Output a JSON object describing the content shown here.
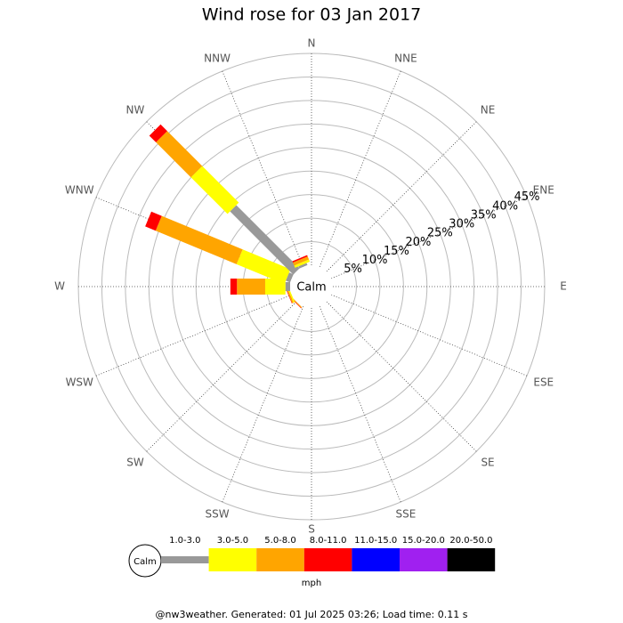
{
  "chart_data": {
    "type": "windrose",
    "title": "Wind rose for 03 Jan 2017",
    "calm_label": "Calm",
    "categories": [
      "N",
      "NNE",
      "NE",
      "ENE",
      "E",
      "ESE",
      "SE",
      "SSE",
      "S",
      "SSW",
      "SW",
      "WSW",
      "W",
      "WNW",
      "NW",
      "NNW"
    ],
    "rlim": [
      0,
      45
    ],
    "rticks": [
      {
        "value": 5,
        "label": "5%"
      },
      {
        "value": 10,
        "label": "10%"
      },
      {
        "value": 15,
        "label": "15%"
      },
      {
        "value": 20,
        "label": "20%"
      },
      {
        "value": 25,
        "label": "25%"
      },
      {
        "value": 30,
        "label": "30%"
      },
      {
        "value": 35,
        "label": "35%"
      },
      {
        "value": 40,
        "label": "40%"
      },
      {
        "value": 45,
        "label": "45%"
      }
    ],
    "series": [
      {
        "name": "1.0-3.0",
        "color": "#999999",
        "values": [
          0,
          0,
          0,
          0,
          0,
          0,
          0,
          0,
          0,
          0,
          0,
          0,
          1,
          1,
          19,
          0.5
        ]
      },
      {
        "name": "3.0-5.0",
        "color": "#ffff00",
        "values": [
          0,
          0,
          0,
          0,
          0,
          0,
          0,
          0,
          0,
          0,
          0,
          0.3,
          4.3,
          11,
          11,
          0.5
        ]
      },
      {
        "name": "5.0-8.0",
        "color": "#ffa500",
        "values": [
          0,
          0,
          0,
          0,
          0,
          0,
          0,
          0,
          0,
          0,
          0.2,
          0.3,
          6,
          18.6,
          10.5,
          0.7
        ]
      },
      {
        "name": "8.0-11.0",
        "color": "#ff0000",
        "values": [
          0,
          0,
          0,
          0,
          0,
          0,
          0,
          0,
          0,
          0,
          0.1,
          0.1,
          1.4,
          2.4,
          2,
          0.3
        ]
      },
      {
        "name": "11.0-15.0",
        "color": "#0000ff",
        "values": [
          0,
          0,
          0,
          0,
          0,
          0,
          0,
          0,
          0,
          0,
          0,
          0,
          0,
          0,
          0,
          0
        ]
      },
      {
        "name": "15.0-20.0",
        "color": "#a020f0",
        "values": [
          0,
          0,
          0,
          0,
          0,
          0,
          0,
          0,
          0,
          0,
          0,
          0,
          0,
          0,
          0,
          0
        ]
      },
      {
        "name": "20.0-50.0",
        "color": "#000000",
        "values": [
          0,
          0,
          0,
          0,
          0,
          0,
          0,
          0,
          0,
          0,
          0,
          0,
          0,
          0,
          0,
          0
        ]
      }
    ],
    "legend_unit": "mph",
    "footer": "@nw3weather. Generated: 01 Jul 2025 03:26; Load time: 0.11 s"
  }
}
